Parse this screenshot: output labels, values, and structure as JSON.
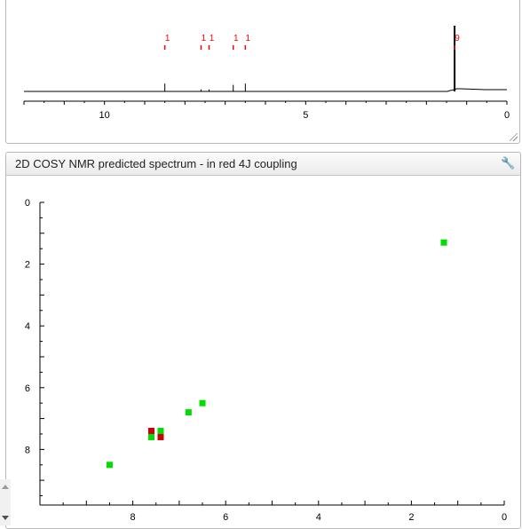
{
  "chart_data": [
    {
      "type": "line",
      "title": "",
      "xlabel": "",
      "ylabel": "",
      "xlim": [
        12.0,
        0.0
      ],
      "x_reversed": true,
      "xticks": [
        10,
        5,
        0
      ],
      "baseline_color": "#000000",
      "peaks": [
        {
          "ppm": 8.5,
          "height": 0.12,
          "label": "1"
        },
        {
          "ppm": 7.6,
          "height": 0.03,
          "label": "1"
        },
        {
          "ppm": 7.4,
          "height": 0.03,
          "label": "1"
        },
        {
          "ppm": 6.8,
          "height": 0.1,
          "label": "1"
        },
        {
          "ppm": 6.5,
          "height": 0.12,
          "label": "1"
        },
        {
          "ppm": 1.3,
          "height": 1.0,
          "label": "9"
        }
      ],
      "label_color": "#ff0000",
      "peak_color": "#000000"
    },
    {
      "type": "scatter",
      "title": "2D COSY NMR predicted spectrum - in red 4J coupling",
      "xlabel": "",
      "ylabel": "",
      "xlim": [
        10.0,
        0.0
      ],
      "ylim": [
        0.0,
        9.8
      ],
      "x_reversed": true,
      "y_reversed": true,
      "xticks": [
        8,
        6,
        4,
        2,
        0
      ],
      "yticks": [
        0,
        2,
        4,
        6,
        8
      ],
      "colors": {
        "diagonal": "#00dd00",
        "long_range": "#cc0000"
      },
      "points": [
        {
          "x": 1.3,
          "y": 1.3,
          "kind": "diagonal"
        },
        {
          "x": 6.5,
          "y": 6.5,
          "kind": "diagonal"
        },
        {
          "x": 6.8,
          "y": 6.8,
          "kind": "diagonal"
        },
        {
          "x": 7.4,
          "y": 7.4,
          "kind": "diagonal"
        },
        {
          "x": 7.6,
          "y": 7.6,
          "kind": "diagonal"
        },
        {
          "x": 8.5,
          "y": 8.5,
          "kind": "diagonal"
        },
        {
          "x": 7.6,
          "y": 7.4,
          "kind": "long_range"
        },
        {
          "x": 7.4,
          "y": 7.6,
          "kind": "long_range"
        }
      ]
    }
  ],
  "panel": {
    "title": "2D COSY NMR predicted spectrum - in red 4J coupling",
    "tool_icon": "wrench-icon"
  }
}
